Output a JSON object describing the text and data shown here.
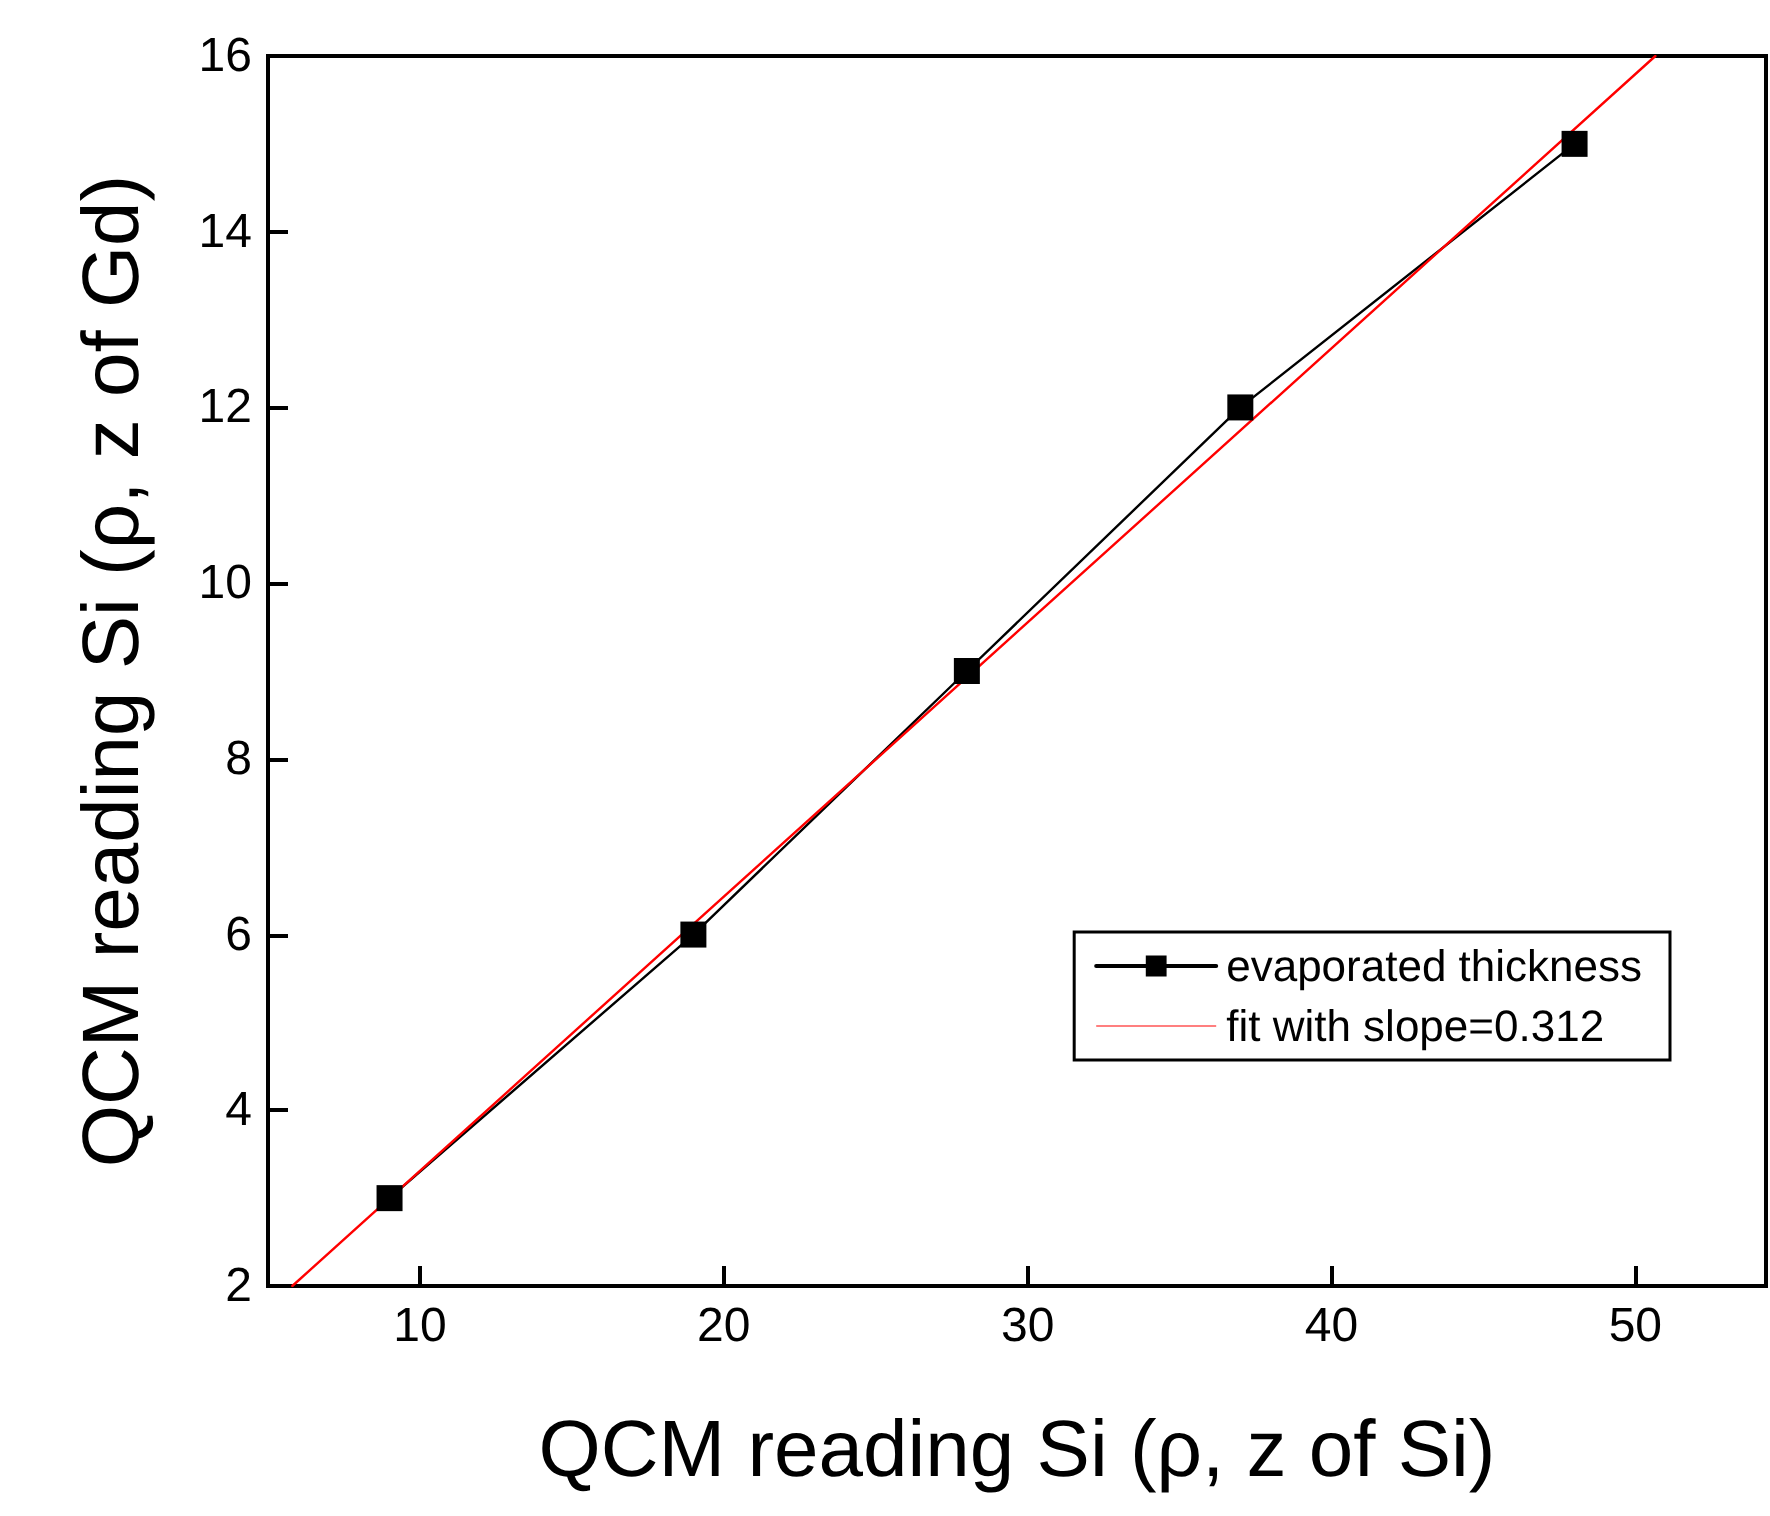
{
  "chart_data": {
    "type": "line",
    "xlabel": "QCM reading Si (ρ, z of Si)",
    "ylabel": "QCM reading Si (ρ, z of Gd)",
    "xlim": [
      5,
      54.3
    ],
    "xticks": [
      10,
      20,
      30,
      40,
      50
    ],
    "ylim": [
      2,
      16
    ],
    "yticks": [
      2,
      4,
      6,
      8,
      10,
      12,
      14,
      16
    ],
    "grid": false,
    "legend": "bottom right",
    "marker": "square",
    "line_style": "solid",
    "series": [
      {
        "name": "evaporated thickness",
        "color": "#000000",
        "x": [
          9,
          19,
          28,
          37,
          48
        ],
        "values": [
          3,
          6,
          9,
          12,
          15
        ]
      },
      {
        "name": "fit with slope=0.312",
        "color": "#ff0000",
        "type": "line",
        "marker": "none",
        "x": [
          5.8,
          50.66
        ],
        "values": [
          2,
          16
        ]
      }
    ]
  }
}
